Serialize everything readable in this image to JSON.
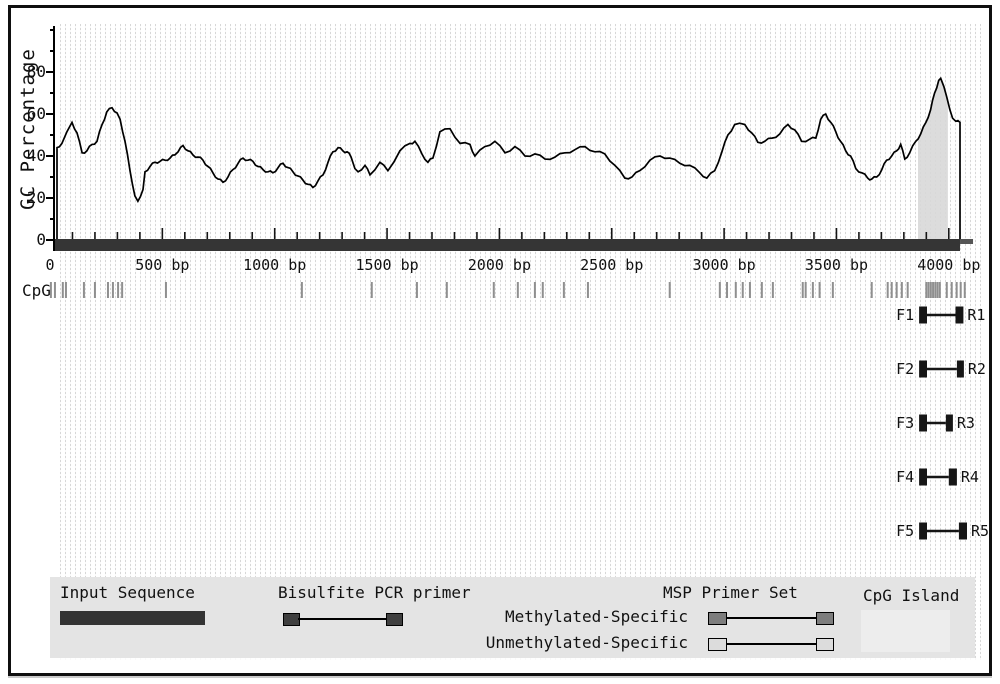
{
  "chart_data": {
    "type": "line",
    "ylabel": "GC Percentage",
    "x_unit": "bp",
    "xlim": [
      0,
      4150
    ],
    "ylim": [
      0,
      100
    ],
    "grid": "vertical-dotted",
    "series": [
      {
        "name": "GC percentage",
        "x": [
          31,
          31,
          53,
          98,
          120,
          143,
          164,
          187,
          209,
          232,
          253,
          276,
          298,
          312,
          334,
          356,
          378,
          391,
          414,
          423,
          445,
          467,
          490,
          512,
          534,
          556,
          570,
          592,
          614,
          636,
          658,
          681,
          703,
          725,
          748,
          770,
          792,
          814,
          837,
          859,
          881,
          903,
          926,
          948,
          970,
          992,
          1015,
          1037,
          1059,
          1081,
          1103,
          1126,
          1148,
          1170,
          1192,
          1215,
          1237,
          1259,
          1282,
          1303,
          1322,
          1340,
          1357,
          1371,
          1402,
          1424,
          1468,
          1504,
          1557,
          1602,
          1624,
          1655,
          1682,
          1704,
          1735,
          1780,
          1825,
          1869,
          1891,
          1935,
          1980,
          2025,
          2069,
          2114,
          2158,
          2203,
          2247,
          2292,
          2336,
          2381,
          2425,
          2469,
          2514,
          2558,
          2590,
          2625,
          2670,
          2715,
          2758,
          2803,
          2847,
          2892,
          2923,
          2958,
          2990,
          3017,
          3047,
          3092,
          3123,
          3150,
          3181,
          3213,
          3248,
          3284,
          3314,
          3345,
          3381,
          3408,
          3430,
          3452,
          3475,
          3497,
          3518,
          3541,
          3563,
          3586,
          3613,
          3639,
          3657,
          3679,
          3702,
          3723,
          3746,
          3768,
          3786,
          3804,
          3826,
          3853,
          3875,
          3898,
          3919,
          3937,
          3955,
          3964,
          3978,
          3991,
          4005,
          4017,
          4031,
          4050,
          4050
        ],
        "y": [
          0,
          44,
          46,
          56,
          51,
          41.5,
          42.5,
          45.5,
          47,
          55,
          61,
          63,
          60.5,
          57.5,
          47,
          33,
          21,
          18.5,
          24,
          32.5,
          35,
          37,
          37.5,
          38,
          39,
          40.5,
          42,
          45,
          42.5,
          40.5,
          39.5,
          38,
          35,
          32,
          29,
          27.5,
          30,
          33.5,
          36.5,
          39,
          38,
          37.5,
          35,
          33.5,
          32.5,
          32,
          34.5,
          36.5,
          34.5,
          32.5,
          30.5,
          28.5,
          26.5,
          25,
          28,
          31,
          37,
          42,
          44,
          42.5,
          42,
          39.5,
          34,
          32.5,
          35.5,
          31,
          37,
          33,
          42.5,
          46,
          47,
          41,
          37,
          39,
          51.5,
          53,
          46,
          45.5,
          40,
          44.5,
          47,
          41.5,
          44.5,
          40,
          41,
          38.5,
          39.5,
          41.5,
          43,
          44.5,
          42,
          41,
          35.5,
          29.5,
          30,
          33,
          38,
          40,
          39,
          36.5,
          35.5,
          32,
          29.5,
          33,
          42,
          50,
          55,
          55,
          51,
          46.5,
          47,
          48.5,
          50.5,
          55,
          52.5,
          47,
          48,
          48.5,
          57.5,
          60,
          56,
          51.5,
          47,
          42.5,
          40,
          34,
          32,
          29.5,
          29,
          30,
          33.5,
          38,
          40,
          42.5,
          45.5,
          38.5,
          41.5,
          47,
          50.5,
          56,
          62,
          70,
          76,
          77,
          73,
          68,
          62,
          58,
          56.5,
          56,
          0
        ]
      }
    ],
    "x_axis_labels": [
      {
        "bp": 0,
        "label": "0"
      },
      {
        "bp": 500,
        "label": "500 bp"
      },
      {
        "bp": 1000,
        "label": "1000 bp"
      },
      {
        "bp": 1500,
        "label": "1500 bp"
      },
      {
        "bp": 2000,
        "label": "2000 bp"
      },
      {
        "bp": 2500,
        "label": "2500 bp"
      },
      {
        "bp": 3000,
        "label": "3000 bp"
      },
      {
        "bp": 3500,
        "label": "3500 bp"
      },
      {
        "bp": 4000,
        "label": "4000 bp"
      }
    ],
    "x_axis_minor_tick_step_bp": 100,
    "y_axis_ticks": [
      {
        "value": 0,
        "label": "0"
      },
      {
        "value": 20,
        "label": "20"
      },
      {
        "value": 40,
        "label": "40"
      },
      {
        "value": 60,
        "label": "60"
      },
      {
        "value": 80,
        "label": "80"
      }
    ],
    "y_axis_minor_ticks": [
      10,
      30,
      50,
      70,
      90,
      100
    ]
  },
  "cpg_track": {
    "label": "CpG",
    "sites_bp": [
      4,
      22,
      57,
      71,
      151,
      200,
      258,
      280,
      303,
      321,
      516,
      1121,
      1432,
      1633,
      1766,
      1975,
      2082,
      2158,
      2193,
      2287,
      2394,
      2758,
      2981,
      3013,
      3052,
      3083,
      3115,
      3168,
      3217,
      3350,
      3363,
      3395,
      3425,
      3484,
      3657,
      3728,
      3746,
      3768,
      3791,
      3817,
      3900,
      3910,
      3920,
      3930,
      3940,
      3950,
      3960,
      3991,
      4013,
      4035,
      4053,
      4071
    ]
  },
  "sequence_track": {
    "start_bp": 0,
    "end_bp": 4050
  },
  "cpg_island": {
    "start_bp": 3863,
    "end_bp": 3996
  },
  "primer_sets": [
    {
      "forward_label": "F1",
      "reverse_label": "R1",
      "forward": {
        "start_bp": 3868,
        "end_bp": 3903
      },
      "reverse": {
        "start_bp": 4030,
        "end_bp": 4065
      }
    },
    {
      "forward_label": "F2",
      "reverse_label": "R2",
      "forward": {
        "start_bp": 3868,
        "end_bp": 3903
      },
      "reverse": {
        "start_bp": 4036,
        "end_bp": 4067
      }
    },
    {
      "forward_label": "F3",
      "reverse_label": "R3",
      "forward": {
        "start_bp": 3868,
        "end_bp": 3903
      },
      "reverse": {
        "start_bp": 3987,
        "end_bp": 4018
      }
    },
    {
      "forward_label": "F4",
      "reverse_label": "R4",
      "forward": {
        "start_bp": 3868,
        "end_bp": 3903
      },
      "reverse": {
        "start_bp": 4000,
        "end_bp": 4036
      }
    },
    {
      "forward_label": "F5",
      "reverse_label": "R5",
      "forward": {
        "start_bp": 3868,
        "end_bp": 3903
      },
      "reverse": {
        "start_bp": 4045,
        "end_bp": 4081
      }
    }
  ],
  "legend": {
    "input_sequence_label": "Input Sequence",
    "bisulfite_label": "Bisulfite PCR primer",
    "msp_label": "MSP Primer Set",
    "methylated_label": "Methylated-Specific",
    "unmethylated_label": "Unmethylated-Specific",
    "cpg_island_label": "CpG Island"
  },
  "colors": {
    "curve": "#000000",
    "axis": "#000000",
    "sequence_bar": "#353535",
    "sequence_bar_tail": "#555555",
    "cpg_tick": "#8f8f8f",
    "cpg_island_fill": "#d8d8d8",
    "primer_bar": "#161616",
    "legend_bg": "#e4e4e4",
    "input_bar": "#333333",
    "bisulfite_primer": "#3f3f3f",
    "methylated_fill": "#7d7d7d",
    "unmethylated_fill": "#dcdcdc",
    "island_swatch": "#ededed"
  }
}
